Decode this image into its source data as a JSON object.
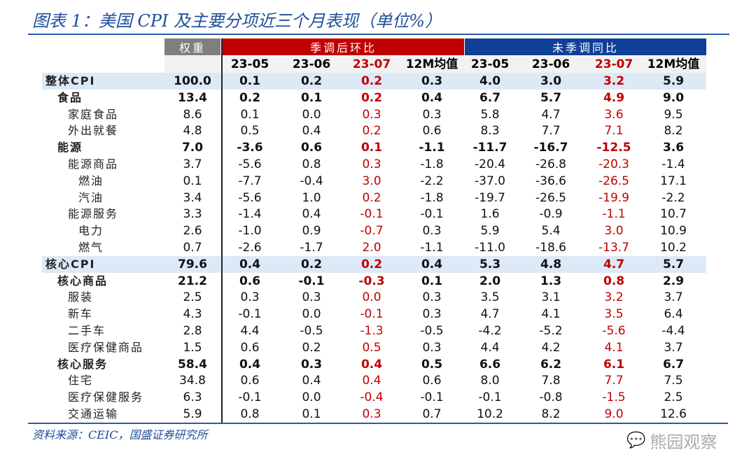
{
  "title": "图表 1：美国 CPI 及主要分项近三个月表现（单位%）",
  "headers": {
    "weight": "权重",
    "sa_group": "季调后环比",
    "nsa_group": "未季调同比",
    "periods": [
      "23-05",
      "23-06",
      "23-07",
      "12M均值"
    ]
  },
  "highlight_color": "#c00000",
  "rows": [
    {
      "label": "整体CPI",
      "level": 0,
      "weight": "100.0",
      "sa": [
        "0.1",
        "0.2",
        "0.2",
        "0.3"
      ],
      "nsa": [
        "4.0",
        "3.0",
        "3.2",
        "5.9"
      ]
    },
    {
      "label": "食品",
      "level": 1,
      "weight": "13.4",
      "sa": [
        "0.2",
        "0.1",
        "0.2",
        "0.4"
      ],
      "nsa": [
        "6.7",
        "5.7",
        "4.9",
        "9.0"
      ]
    },
    {
      "label": "家庭食品",
      "level": 2,
      "weight": "8.6",
      "sa": [
        "0.1",
        "0.0",
        "0.3",
        "0.3"
      ],
      "nsa": [
        "5.8",
        "4.7",
        "3.6",
        "9.5"
      ]
    },
    {
      "label": "外出就餐",
      "level": 2,
      "weight": "4.8",
      "sa": [
        "0.5",
        "0.4",
        "0.2",
        "0.6"
      ],
      "nsa": [
        "8.3",
        "7.7",
        "7.1",
        "8.2"
      ]
    },
    {
      "label": "能源",
      "level": 1,
      "weight": "7.0",
      "sa": [
        "-3.6",
        "0.6",
        "0.1",
        "-1.1"
      ],
      "nsa": [
        "-11.7",
        "-16.7",
        "-12.5",
        "3.6"
      ]
    },
    {
      "label": "能源商品",
      "level": 2,
      "weight": "3.7",
      "sa": [
        "-5.6",
        "0.8",
        "0.3",
        "-1.8"
      ],
      "nsa": [
        "-20.4",
        "-26.8",
        "-20.3",
        "-1.4"
      ]
    },
    {
      "label": "燃油",
      "level": 3,
      "weight": "0.1",
      "sa": [
        "-7.7",
        "-0.4",
        "3.0",
        "-2.2"
      ],
      "nsa": [
        "-37.0",
        "-36.6",
        "-26.5",
        "17.1"
      ]
    },
    {
      "label": "汽油",
      "level": 3,
      "weight": "3.4",
      "sa": [
        "-5.6",
        "1.0",
        "0.2",
        "-1.8"
      ],
      "nsa": [
        "-19.7",
        "-26.5",
        "-19.9",
        "-2.2"
      ]
    },
    {
      "label": "能源服务",
      "level": 2,
      "weight": "3.3",
      "sa": [
        "-1.4",
        "0.4",
        "-0.1",
        "-0.1"
      ],
      "nsa": [
        "1.6",
        "-0.9",
        "-1.1",
        "10.7"
      ]
    },
    {
      "label": "电力",
      "level": 3,
      "weight": "2.6",
      "sa": [
        "-1.0",
        "0.9",
        "-0.7",
        "0.3"
      ],
      "nsa": [
        "5.9",
        "5.4",
        "3.0",
        "10.9"
      ]
    },
    {
      "label": "燃气",
      "level": 3,
      "weight": "0.7",
      "sa": [
        "-2.6",
        "-1.7",
        "2.0",
        "-1.1"
      ],
      "nsa": [
        "-11.0",
        "-18.6",
        "-13.7",
        "10.2"
      ]
    },
    {
      "label": "核心CPI",
      "level": 0,
      "weight": "79.6",
      "sa": [
        "0.4",
        "0.2",
        "0.2",
        "0.4"
      ],
      "nsa": [
        "5.3",
        "4.8",
        "4.7",
        "5.7"
      ]
    },
    {
      "label": "核心商品",
      "level": 1,
      "weight": "21.2",
      "sa": [
        "0.6",
        "-0.1",
        "-0.3",
        "0.1"
      ],
      "nsa": [
        "2.0",
        "1.3",
        "0.8",
        "2.9"
      ]
    },
    {
      "label": "服装",
      "level": 2,
      "weight": "2.5",
      "sa": [
        "0.3",
        "0.3",
        "0.0",
        "0.3"
      ],
      "nsa": [
        "3.5",
        "3.1",
        "3.2",
        "3.7"
      ]
    },
    {
      "label": "新车",
      "level": 2,
      "weight": "4.3",
      "sa": [
        "-0.1",
        "0.0",
        "-0.1",
        "0.3"
      ],
      "nsa": [
        "4.7",
        "4.1",
        "3.5",
        "6.4"
      ]
    },
    {
      "label": "二手车",
      "level": 2,
      "weight": "2.8",
      "sa": [
        "4.4",
        "-0.5",
        "-1.3",
        "-0.5"
      ],
      "nsa": [
        "-4.2",
        "-5.2",
        "-5.6",
        "-4.4"
      ]
    },
    {
      "label": "医疗保健商品",
      "level": 2,
      "weight": "1.5",
      "sa": [
        "0.6",
        "0.2",
        "0.5",
        "0.3"
      ],
      "nsa": [
        "4.4",
        "4.2",
        "4.1",
        "3.7"
      ]
    },
    {
      "label": "核心服务",
      "level": 1,
      "weight": "58.4",
      "sa": [
        "0.4",
        "0.3",
        "0.4",
        "0.5"
      ],
      "nsa": [
        "6.6",
        "6.2",
        "6.1",
        "6.7"
      ]
    },
    {
      "label": "住宅",
      "level": 2,
      "weight": "34.8",
      "sa": [
        "0.6",
        "0.4",
        "0.4",
        "0.6"
      ],
      "nsa": [
        "8.0",
        "7.8",
        "7.7",
        "7.5"
      ]
    },
    {
      "label": "医疗保健服务",
      "level": 2,
      "weight": "6.3",
      "sa": [
        "-0.1",
        "0.0",
        "-0.4",
        "-0.1"
      ],
      "nsa": [
        "-0.1",
        "-0.8",
        "-1.5",
        "2.5"
      ]
    },
    {
      "label": "交通运输",
      "level": 2,
      "weight": "5.9",
      "sa": [
        "0.8",
        "0.1",
        "0.3",
        "0.7"
      ],
      "nsa": [
        "10.2",
        "8.2",
        "9.0",
        "12.6"
      ]
    }
  ],
  "source": "资料来源：CEIC，国盛证券研究所",
  "watermark": "熊园观察"
}
